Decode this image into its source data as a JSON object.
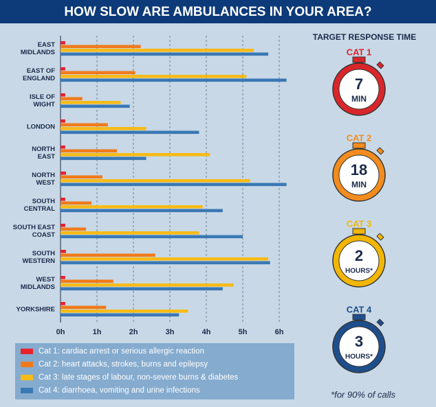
{
  "chart_data": {
    "type": "hbar",
    "title": "HOW SLOW ARE AMBULANCES IN YOUR AREA?",
    "categories": [
      "EAST\nMIDLANDS",
      "EAST OF\nENGLAND",
      "ISLE OF\nWIGHT",
      "LONDON",
      "NORTH\nEAST",
      "NORTH\nWEST",
      "SOUTH\nCENTRAL",
      "SOUTH EAST\nCOAST",
      "SOUTH\nWESTERN",
      "WEST\nMIDLANDS",
      "YORKSHIRE"
    ],
    "series": [
      {
        "name": "Cat 1: cardiac arrest or serious allergic reaction",
        "color": "#e8212b",
        "values": [
          0.13,
          0.13,
          0.13,
          0.13,
          0.13,
          0.15,
          0.13,
          0.13,
          0.15,
          0.13,
          0.13
        ]
      },
      {
        "name": "Cat 2: heart attacks, strokes, burns and epilepsy",
        "color": "#f07a1a",
        "values": [
          2.2,
          2.05,
          0.6,
          1.3,
          1.55,
          1.15,
          0.85,
          0.7,
          2.6,
          1.45,
          1.25
        ]
      },
      {
        "name": "Cat 3: late stages of labour, non-severe burns & diabetes",
        "color": "#f7bb16",
        "values": [
          5.3,
          5.1,
          1.65,
          2.35,
          4.1,
          5.2,
          3.9,
          3.8,
          5.7,
          4.75,
          3.5
        ]
      },
      {
        "name": "Cat 4: diarrhoea, vomiting and urine infections",
        "color": "#3a78b5",
        "values": [
          5.7,
          6.2,
          1.9,
          3.8,
          2.35,
          6.2,
          4.45,
          5.0,
          5.75,
          4.45,
          3.25
        ]
      }
    ],
    "xlim": [
      0,
      6
    ],
    "xticks": [
      {
        "value": 0,
        "label": "0h"
      },
      {
        "value": 1,
        "label": "1h"
      },
      {
        "value": 2,
        "label": "2h"
      },
      {
        "value": 3,
        "label": "3h"
      },
      {
        "value": 4,
        "label": "4h"
      },
      {
        "value": 5,
        "label": "5h"
      },
      {
        "value": 6,
        "label": "6h"
      }
    ],
    "grid": true
  },
  "panel": {
    "title": "TARGET RESPONSE TIME",
    "targets": [
      {
        "label": "CAT 1",
        "number": 7,
        "unit": "MIN",
        "color": "#d9262a"
      },
      {
        "label": "CAT 2",
        "number": 18,
        "unit": "MIN",
        "color": "#f28c1e"
      },
      {
        "label": "CAT 3",
        "number": 2,
        "unit": "HOURS*",
        "color": "#f2b705"
      },
      {
        "label": "CAT 4",
        "number": 3,
        "unit": "HOURS*",
        "color": "#1f4e8c"
      }
    ],
    "footnote": "*for 90% of calls"
  }
}
